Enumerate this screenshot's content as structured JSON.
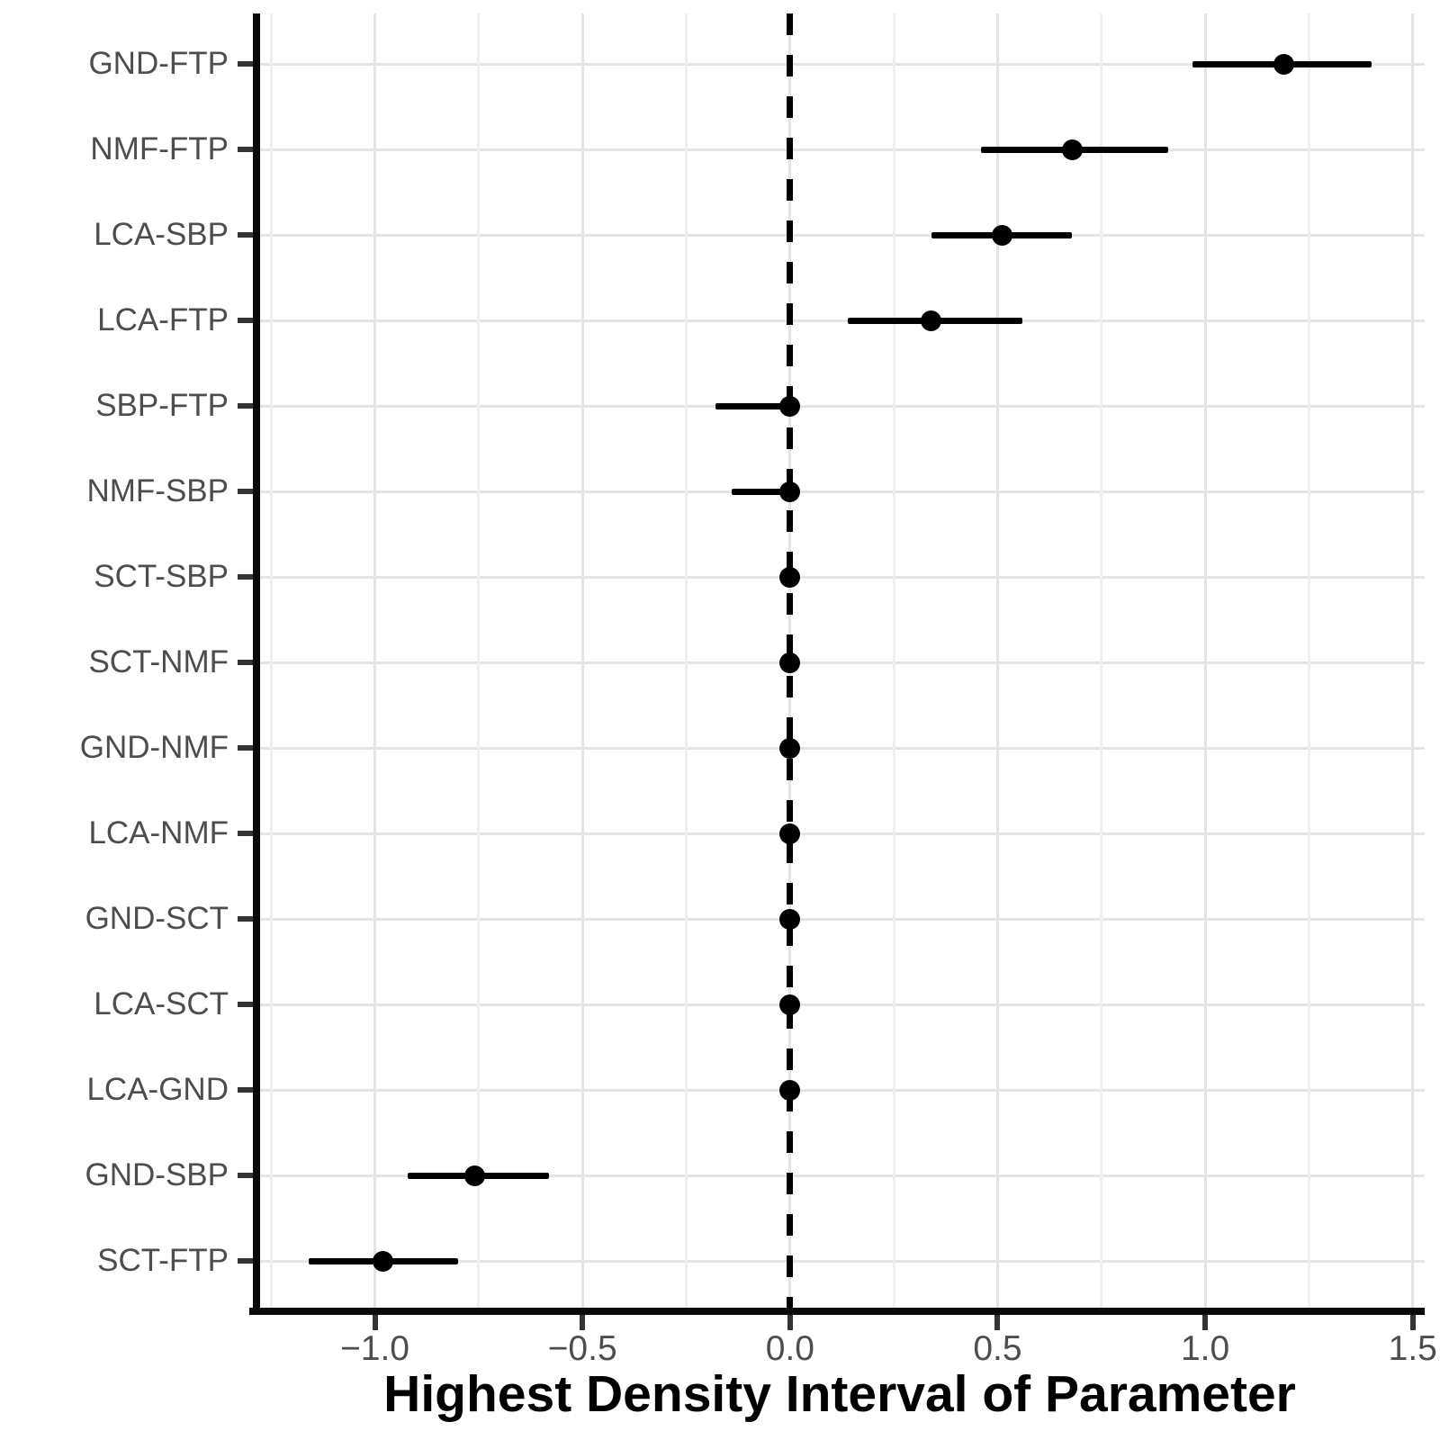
{
  "chart_data": {
    "type": "scatter",
    "subtype": "forest-plot-point-interval",
    "title": "",
    "xlabel": "Highest Density Interval of Parameter",
    "ylabel": "",
    "legend": false,
    "grid": true,
    "categories": [
      "GND-FTP",
      "NMF-FTP",
      "LCA-SBP",
      "LCA-FTP",
      "SBP-FTP",
      "NMF-SBP",
      "SCT-SBP",
      "SCT-NMF",
      "GND-NMF",
      "LCA-NMF",
      "GND-SCT",
      "LCA-SCT",
      "LCA-GND",
      "GND-SBP",
      "SCT-FTP"
    ],
    "rows": [
      {
        "label": "GND-FTP",
        "point": 1.19,
        "lower": 0.97,
        "upper": 1.4
      },
      {
        "label": "NMF-FTP",
        "point": 0.68,
        "lower": 0.46,
        "upper": 0.91
      },
      {
        "label": "LCA-SBP",
        "point": 0.51,
        "lower": 0.34,
        "upper": 0.68
      },
      {
        "label": "LCA-FTP",
        "point": 0.34,
        "lower": 0.14,
        "upper": 0.56
      },
      {
        "label": "SBP-FTP",
        "point": 0.0,
        "lower": -0.18,
        "upper": 0.02
      },
      {
        "label": "NMF-SBP",
        "point": 0.0,
        "lower": -0.14,
        "upper": 0.01
      },
      {
        "label": "SCT-SBP",
        "point": 0.0,
        "lower": -0.01,
        "upper": 0.01
      },
      {
        "label": "SCT-NMF",
        "point": 0.0,
        "lower": 0.0,
        "upper": 0.0
      },
      {
        "label": "GND-NMF",
        "point": 0.0,
        "lower": 0.0,
        "upper": 0.0
      },
      {
        "label": "LCA-NMF",
        "point": 0.0,
        "lower": -0.01,
        "upper": 0.01
      },
      {
        "label": "GND-SCT",
        "point": 0.0,
        "lower": 0.0,
        "upper": 0.0
      },
      {
        "label": "LCA-SCT",
        "point": 0.0,
        "lower": -0.01,
        "upper": 0.01
      },
      {
        "label": "LCA-GND",
        "point": 0.0,
        "lower": 0.0,
        "upper": 0.0
      },
      {
        "label": "GND-SBP",
        "point": -0.76,
        "lower": -0.92,
        "upper": -0.58
      },
      {
        "label": "SCT-FTP",
        "point": -0.98,
        "lower": -1.16,
        "upper": -0.8
      }
    ],
    "x_axis": {
      "ticks": [
        -1.0,
        -0.5,
        0.0,
        0.5,
        1.0,
        1.5
      ],
      "tick_labels": [
        "−1.0",
        "−0.5",
        "0.0",
        "0.5",
        "1.0",
        "1.5"
      ],
      "minor_gridlines": [
        -1.25,
        -0.75,
        -0.25,
        0.25,
        0.75,
        1.25
      ],
      "range": [
        -1.29,
        1.53
      ]
    },
    "reference_line": {
      "x": 0.0,
      "style": "dashed",
      "color": "#000000"
    },
    "colors": {
      "point": "#000000",
      "interval": "#000000",
      "grid_major": "#e4e4e4",
      "grid_minor": "#efefef",
      "axis": "#0a0a0a",
      "tick_label": "#4d4d4d",
      "category_label": "#4d4d4d",
      "title": "#000000",
      "background": "#ffffff"
    }
  }
}
